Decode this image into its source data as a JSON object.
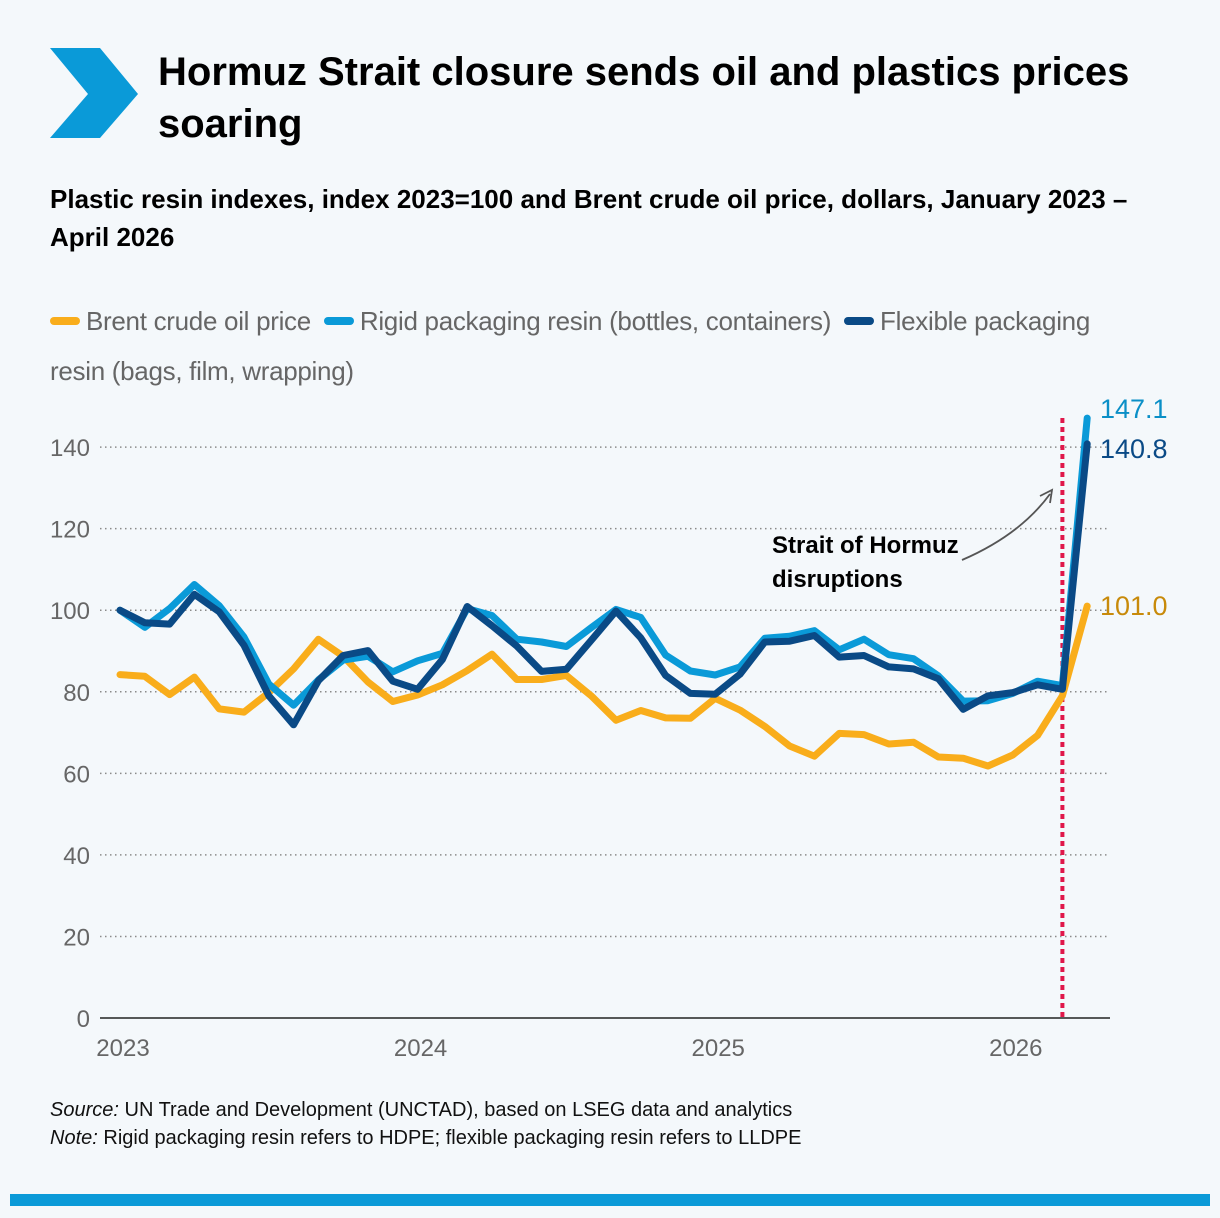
{
  "header": {
    "title": "Hormuz Strait closure sends oil and plastics prices soaring",
    "subtitle": "Plastic resin indexes, index 2023=100 and Brent crude oil price, dollars, January 2023 – April 2026",
    "accent_color": "#0a9ad8",
    "icon": "chevron-right-icon"
  },
  "chart_data": {
    "type": "line",
    "title": "Hormuz Strait closure sends oil and plastics prices soaring",
    "subtitle": "Plastic resin indexes, index 2023=100 and Brent crude oil price, dollars, January 2023 – April 2026",
    "x": [
      "2023-01",
      "2023-02",
      "2023-03",
      "2023-04",
      "2023-05",
      "2023-06",
      "2023-07",
      "2023-08",
      "2023-09",
      "2023-10",
      "2023-11",
      "2023-12",
      "2024-01",
      "2024-02",
      "2024-03",
      "2024-04",
      "2024-05",
      "2024-06",
      "2024-07",
      "2024-08",
      "2024-09",
      "2024-10",
      "2024-11",
      "2024-12",
      "2025-01",
      "2025-02",
      "2025-03",
      "2025-04",
      "2025-05",
      "2025-06",
      "2025-07",
      "2025-08",
      "2025-09",
      "2025-10",
      "2025-11",
      "2025-12",
      "2026-01",
      "2026-02",
      "2026-03",
      "2026-04"
    ],
    "x_ticks": [
      {
        "label": "2023",
        "x": "2023-01"
      },
      {
        "label": "2024",
        "x": "2024-01"
      },
      {
        "label": "2025",
        "x": "2025-01"
      },
      {
        "label": "2026",
        "x": "2026-01"
      }
    ],
    "series": [
      {
        "name": "Brent crude oil price",
        "color": "#f9ad1b",
        "values": [
          84.2,
          83.8,
          79.3,
          83.6,
          75.8,
          75.0,
          79.8,
          85.6,
          92.9,
          88.7,
          82.4,
          77.6,
          79.2,
          81.7,
          85.2,
          89.2,
          83.0,
          83.0,
          84.0,
          79.0,
          73.0,
          75.4,
          73.6,
          73.5,
          78.4,
          75.5,
          71.5,
          66.7,
          64.2,
          69.8,
          69.5,
          67.2,
          67.6,
          64.0,
          63.7,
          61.8,
          64.5,
          69.3,
          79.0,
          101.0
        ],
        "end_label": "101.0",
        "end_label_color": "#c88a0a"
      },
      {
        "name": "Rigid packaging resin (bottles, containers)",
        "color": "#0a9ad8",
        "values": [
          100.0,
          95.8,
          100.4,
          106.3,
          101.1,
          93.4,
          81.9,
          76.7,
          82.9,
          87.8,
          88.7,
          84.9,
          87.6,
          89.4,
          100.4,
          98.7,
          92.9,
          92.2,
          91.1,
          95.7,
          100.2,
          98.2,
          89.0,
          85.1,
          84.1,
          86.1,
          93.1,
          93.6,
          95.0,
          90.3,
          92.9,
          89.1,
          88.1,
          83.9,
          77.7,
          77.8,
          79.6,
          82.6,
          81.5,
          147.1
        ],
        "end_label": "147.1",
        "end_label_color": "#0a8fc7"
      },
      {
        "name": "Flexible packaging resin (bags, film, wrapping)",
        "color": "#0a4a86",
        "values": [
          100.0,
          96.9,
          96.6,
          103.9,
          99.6,
          91.4,
          79.0,
          71.9,
          82.7,
          88.9,
          90.1,
          82.6,
          80.6,
          87.9,
          100.9,
          96.2,
          91.2,
          85.0,
          85.5,
          92.6,
          99.8,
          93.2,
          84.0,
          79.6,
          79.4,
          84.3,
          92.2,
          92.4,
          93.8,
          88.5,
          88.9,
          86.1,
          85.6,
          83.2,
          75.7,
          79.0,
          79.8,
          81.7,
          80.6,
          140.8
        ],
        "end_label": "140.8",
        "end_label_color": "#0a4a86"
      }
    ],
    "ylim": [
      0,
      150
    ],
    "y_ticks": [
      0,
      20,
      40,
      60,
      80,
      100,
      120,
      140
    ],
    "grid": "horizontal dotted",
    "legend": "top",
    "event_marker": {
      "x": "2026-03",
      "color": "#e0174a",
      "style": "dotted"
    },
    "annotation": {
      "text_lines": [
        "Strait of Hormuz",
        "disruptions"
      ]
    }
  },
  "footer": {
    "source_label": "Source:",
    "source_text": " UN Trade and Development (UNCTAD), based on LSEG data and analytics",
    "note_label": "Note:",
    "note_text": " Rigid packaging resin refers to HDPE; flexible packaging resin refers to LLDPE"
  }
}
